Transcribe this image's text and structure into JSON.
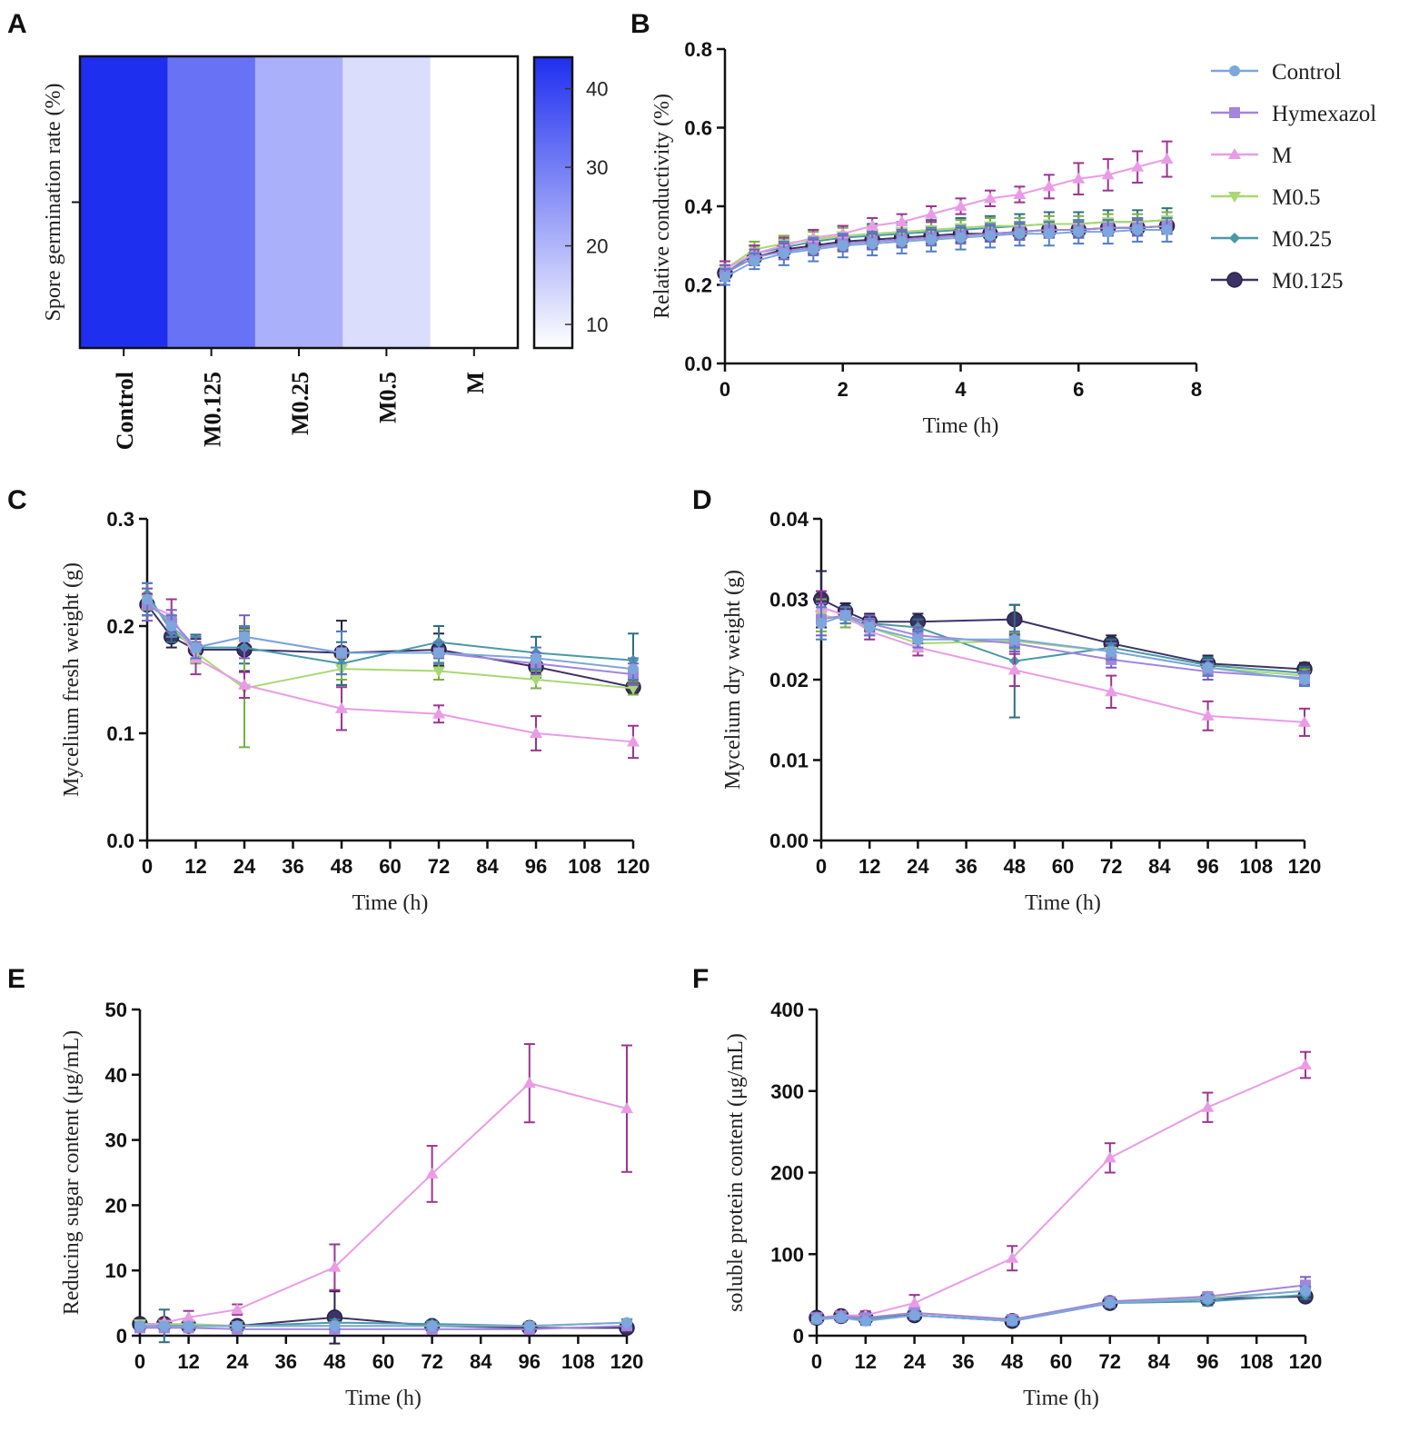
{
  "colors": {
    "Control": "#7ba7dc",
    "Hymexazol": "#a385dc",
    "M": "#ea9be6",
    "M0.5": "#a8d870",
    "M0.25": "#4a98a8",
    "M0.125": "#3c3266",
    "M_err": "#9b3490",
    "heat_max": "#1f2ff0"
  },
  "chart_data": [
    {
      "panel": "A",
      "type": "heatmap",
      "ylabel": "Spore germination rate (%)",
      "categories": [
        "Control",
        "M0.125",
        "M0.25",
        "M0.5",
        "M"
      ],
      "values": [
        44,
        32,
        21,
        13,
        7
      ],
      "colorbar": {
        "min": 7,
        "max": 44,
        "ticks": [
          10,
          20,
          30,
          40
        ]
      }
    },
    {
      "panel": "B",
      "type": "line",
      "xlabel": "Time (h)",
      "ylabel": "Relative conductivity (%)",
      "xlim": [
        0,
        8
      ],
      "ylim": [
        0,
        0.8
      ],
      "xticks": [
        0,
        2,
        4,
        6,
        8
      ],
      "yticks": [
        0.0,
        0.2,
        0.4,
        0.6,
        0.8
      ],
      "ytick_labels": [
        "0.0",
        "0.2",
        "0.4",
        "0.6",
        "0.8"
      ],
      "legend": [
        "Control",
        "Hymexazol",
        "M",
        "M0.5",
        "M0.25",
        "M0.125"
      ],
      "x": [
        0,
        0.5,
        1,
        1.5,
        2,
        2.5,
        3,
        3.5,
        4,
        4.5,
        5,
        5.5,
        6,
        6.5,
        7,
        7.5
      ],
      "series": [
        {
          "name": "Control",
          "values": [
            0.22,
            0.26,
            0.28,
            0.29,
            0.3,
            0.305,
            0.31,
            0.315,
            0.32,
            0.325,
            0.33,
            0.33,
            0.335,
            0.335,
            0.34,
            0.34
          ],
          "err": [
            0.02,
            0.02,
            0.03,
            0.03,
            0.03,
            0.03,
            0.03,
            0.03,
            0.03,
            0.03,
            0.03,
            0.03,
            0.03,
            0.03,
            0.03,
            0.03
          ]
        },
        {
          "name": "Hymexazol",
          "values": [
            0.23,
            0.27,
            0.285,
            0.295,
            0.305,
            0.31,
            0.315,
            0.32,
            0.325,
            0.33,
            0.335,
            0.34,
            0.34,
            0.345,
            0.345,
            0.35
          ],
          "err": [
            0.02,
            0.02,
            0.02,
            0.02,
            0.02,
            0.02,
            0.02,
            0.02,
            0.02,
            0.02,
            0.02,
            0.02,
            0.02,
            0.02,
            0.02,
            0.02
          ]
        },
        {
          "name": "M",
          "values": [
            0.24,
            0.28,
            0.3,
            0.32,
            0.33,
            0.35,
            0.36,
            0.38,
            0.4,
            0.42,
            0.43,
            0.45,
            0.47,
            0.48,
            0.5,
            0.52
          ],
          "err": [
            0.02,
            0.02,
            0.02,
            0.02,
            0.02,
            0.02,
            0.02,
            0.02,
            0.02,
            0.02,
            0.02,
            0.03,
            0.04,
            0.04,
            0.04,
            0.045
          ]
        },
        {
          "name": "M0.5",
          "values": [
            0.24,
            0.29,
            0.305,
            0.315,
            0.325,
            0.33,
            0.335,
            0.34,
            0.345,
            0.35,
            0.35,
            0.355,
            0.355,
            0.36,
            0.36,
            0.365
          ],
          "err": [
            0.02,
            0.02,
            0.02,
            0.02,
            0.02,
            0.02,
            0.02,
            0.02,
            0.02,
            0.02,
            0.02,
            0.02,
            0.02,
            0.02,
            0.02,
            0.02
          ]
        },
        {
          "name": "M0.25",
          "values": [
            0.23,
            0.28,
            0.295,
            0.31,
            0.32,
            0.325,
            0.33,
            0.335,
            0.34,
            0.345,
            0.35,
            0.355,
            0.355,
            0.36,
            0.36,
            0.365
          ],
          "err": [
            0.02,
            0.02,
            0.02,
            0.03,
            0.03,
            0.03,
            0.03,
            0.03,
            0.03,
            0.03,
            0.03,
            0.03,
            0.03,
            0.03,
            0.03,
            0.03
          ]
        },
        {
          "name": "M0.125",
          "values": [
            0.23,
            0.27,
            0.29,
            0.3,
            0.31,
            0.315,
            0.32,
            0.325,
            0.33,
            0.33,
            0.335,
            0.34,
            0.34,
            0.345,
            0.345,
            0.35
          ],
          "err": [
            0.02,
            0.02,
            0.02,
            0.02,
            0.02,
            0.02,
            0.02,
            0.02,
            0.02,
            0.02,
            0.02,
            0.02,
            0.02,
            0.02,
            0.02,
            0.02
          ]
        }
      ]
    },
    {
      "panel": "C",
      "type": "line",
      "xlabel": "Time (h)",
      "ylabel": "Mycelium fresh weight (g)",
      "xlim": [
        0,
        120
      ],
      "ylim": [
        0,
        0.3
      ],
      "xticks": [
        0,
        12,
        24,
        36,
        48,
        60,
        72,
        84,
        96,
        108,
        120
      ],
      "yticks": [
        0.0,
        0.1,
        0.2,
        0.3
      ],
      "ytick_labels": [
        "0.0",
        "0.1",
        "0.2",
        "0.3"
      ],
      "x": [
        0,
        6,
        12,
        24,
        48,
        72,
        96,
        120
      ],
      "series": [
        {
          "name": "Control",
          "values": [
            0.225,
            0.2,
            0.18,
            0.19,
            0.175,
            0.175,
            0.17,
            0.16
          ],
          "err": [
            0.015,
            0.01,
            0.01,
            0.01,
            0.02,
            0.01,
            0.01,
            0.01
          ]
        },
        {
          "name": "Hymexazol",
          "values": [
            0.22,
            0.205,
            0.18,
            0.19,
            0.175,
            0.175,
            0.165,
            0.155
          ],
          "err": [
            0.015,
            0.01,
            0.01,
            0.02,
            0.02,
            0.01,
            0.01,
            0.01
          ]
        },
        {
          "name": "M",
          "values": [
            0.22,
            0.21,
            0.17,
            0.145,
            0.123,
            0.118,
            0.1,
            0.092
          ],
          "err": [
            0.01,
            0.015,
            0.015,
            0.012,
            0.02,
            0.008,
            0.016,
            0.015
          ]
        },
        {
          "name": "M0.5",
          "values": [
            0.225,
            0.2,
            0.175,
            0.142,
            0.16,
            0.158,
            0.15,
            0.142
          ],
          "err": [
            0.01,
            0.01,
            0.01,
            0.055,
            0.01,
            0.008,
            0.008,
            0.006
          ]
        },
        {
          "name": "M0.25",
          "values": [
            0.23,
            0.195,
            0.18,
            0.18,
            0.165,
            0.185,
            0.175,
            0.168
          ],
          "err": [
            0.01,
            0.01,
            0.012,
            0.015,
            0.02,
            0.015,
            0.015,
            0.025
          ]
        },
        {
          "name": "M0.125",
          "values": [
            0.22,
            0.19,
            0.178,
            0.178,
            0.175,
            0.178,
            0.162,
            0.143
          ],
          "err": [
            0.01,
            0.01,
            0.01,
            0.02,
            0.03,
            0.015,
            0.01,
            0.005
          ]
        }
      ]
    },
    {
      "panel": "D",
      "type": "line",
      "xlabel": "Time (h)",
      "ylabel": "Mycelium dry weight (g)",
      "xlim": [
        0,
        120
      ],
      "ylim": [
        0,
        0.04
      ],
      "xticks": [
        0,
        12,
        24,
        36,
        48,
        60,
        72,
        84,
        96,
        108,
        120
      ],
      "yticks": [
        0.0,
        0.01,
        0.02,
        0.03,
        0.04
      ],
      "ytick_labels": [
        "0.00",
        "0.01",
        "0.02",
        "0.03",
        "0.04"
      ],
      "x": [
        0,
        6,
        12,
        24,
        48,
        72,
        96,
        120
      ],
      "series": [
        {
          "name": "Control",
          "values": [
            0.027,
            0.028,
            0.0265,
            0.025,
            0.025,
            0.0235,
            0.0215,
            0.02
          ],
          "err": [
            0.002,
            0.001,
            0.001,
            0.001,
            0.001,
            0.001,
            0.001,
            0.0008
          ]
        },
        {
          "name": "Hymexazol",
          "values": [
            0.0275,
            0.028,
            0.027,
            0.0255,
            0.0245,
            0.0225,
            0.021,
            0.0202
          ],
          "err": [
            0.002,
            0.001,
            0.001,
            0.001,
            0.001,
            0.001,
            0.001,
            0.0008
          ]
        },
        {
          "name": "M",
          "values": [
            0.029,
            0.028,
            0.026,
            0.024,
            0.0212,
            0.0185,
            0.0155,
            0.0147
          ],
          "err": [
            0.002,
            0.001,
            0.001,
            0.001,
            0.002,
            0.002,
            0.0018,
            0.0017
          ]
        },
        {
          "name": "M0.5",
          "values": [
            0.028,
            0.0275,
            0.0265,
            0.0245,
            0.0248,
            0.0235,
            0.0215,
            0.0205
          ],
          "err": [
            0.002,
            0.001,
            0.001,
            0.001,
            0.001,
            0.001,
            0.001,
            0.0008
          ]
        },
        {
          "name": "M0.25",
          "values": [
            0.029,
            0.028,
            0.027,
            0.0265,
            0.0223,
            0.024,
            0.0218,
            0.0208
          ],
          "err": [
            0.002,
            0.001,
            0.001,
            0.001,
            0.007,
            0.001,
            0.001,
            0.0008
          ]
        },
        {
          "name": "M0.125",
          "values": [
            0.03,
            0.0285,
            0.0272,
            0.0272,
            0.0275,
            0.0245,
            0.022,
            0.0213
          ],
          "err": [
            0.0035,
            0.001,
            0.001,
            0.001,
            0.0018,
            0.001,
            0.001,
            0.0008
          ]
        }
      ]
    },
    {
      "panel": "E",
      "type": "line",
      "xlabel": "Time (h)",
      "ylabel": "Reducing sugar content (μg/mL)",
      "xlim": [
        0,
        120
      ],
      "ylim": [
        0,
        50
      ],
      "xticks": [
        0,
        12,
        24,
        36,
        48,
        60,
        72,
        84,
        96,
        108,
        120
      ],
      "yticks": [
        0,
        10,
        20,
        30,
        40,
        50
      ],
      "ytick_labels": [
        "0",
        "10",
        "20",
        "30",
        "40",
        "50"
      ],
      "x": [
        0,
        6,
        12,
        24,
        48,
        72,
        96,
        120
      ],
      "series": [
        {
          "name": "Control",
          "values": [
            1.5,
            1.5,
            1.5,
            1.5,
            1.5,
            1.5,
            1.5,
            2.0
          ],
          "err": [
            0.5,
            0.5,
            0.5,
            0.5,
            0.5,
            0.5,
            0.5,
            0.5
          ]
        },
        {
          "name": "Hymexazol",
          "values": [
            1.2,
            1.2,
            1.2,
            1.0,
            1.0,
            1.0,
            1.0,
            1.5
          ],
          "err": [
            0.5,
            0.5,
            0.5,
            0.5,
            0.5,
            0.5,
            0.5,
            0.5
          ]
        },
        {
          "name": "M",
          "values": [
            1.5,
            2.0,
            2.8,
            4.0,
            10.5,
            24.8,
            38.7,
            34.8
          ],
          "err": [
            0.5,
            0.5,
            1.0,
            0.8,
            3.5,
            4.3,
            6.0,
            9.7
          ]
        },
        {
          "name": "M0.5",
          "values": [
            1.8,
            1.8,
            1.8,
            1.5,
            1.5,
            1.5,
            1.5,
            2.0
          ],
          "err": [
            0.5,
            0.5,
            0.5,
            0.5,
            0.5,
            0.5,
            0.5,
            0.5
          ]
        },
        {
          "name": "M0.25",
          "values": [
            1.5,
            1.5,
            1.5,
            1.5,
            2.0,
            1.8,
            1.5,
            2.0
          ],
          "err": [
            0.5,
            2.5,
            0.5,
            0.5,
            0.5,
            0.5,
            0.5,
            0.5
          ]
        },
        {
          "name": "M0.125",
          "values": [
            1.8,
            1.8,
            1.5,
            1.5,
            2.8,
            1.5,
            1.2,
            1.2
          ],
          "err": [
            0.5,
            0.5,
            0.5,
            0.5,
            4.0,
            0.5,
            0.5,
            0.5
          ]
        }
      ]
    },
    {
      "panel": "F",
      "type": "line",
      "xlabel": "Time (h)",
      "ylabel": "soluble protein content (μg/mL)",
      "xlim": [
        0,
        120
      ],
      "ylim": [
        0,
        400
      ],
      "xticks": [
        0,
        12,
        24,
        36,
        48,
        60,
        72,
        84,
        96,
        108,
        120
      ],
      "yticks": [
        0,
        100,
        200,
        300,
        400
      ],
      "ytick_labels": [
        "0",
        "100",
        "200",
        "300",
        "400"
      ],
      "x": [
        0,
        6,
        12,
        24,
        48,
        72,
        96,
        120
      ],
      "series": [
        {
          "name": "Control",
          "values": [
            20,
            22,
            18,
            25,
            18,
            40,
            45,
            55
          ],
          "err": [
            5,
            5,
            5,
            5,
            5,
            5,
            5,
            5
          ]
        },
        {
          "name": "Hymexazol",
          "values": [
            22,
            24,
            22,
            28,
            20,
            42,
            48,
            62
          ],
          "err": [
            5,
            5,
            5,
            5,
            5,
            5,
            5,
            10
          ]
        },
        {
          "name": "M",
          "values": [
            22,
            25,
            25,
            40,
            95,
            218,
            280,
            332
          ],
          "err": [
            5,
            5,
            5,
            10,
            15,
            18,
            18,
            16
          ]
        },
        {
          "name": "M0.5",
          "values": [
            22,
            24,
            22,
            28,
            20,
            40,
            46,
            55
          ],
          "err": [
            5,
            5,
            5,
            5,
            5,
            5,
            5,
            5
          ]
        },
        {
          "name": "M0.25",
          "values": [
            20,
            22,
            20,
            25,
            18,
            40,
            42,
            50
          ],
          "err": [
            5,
            5,
            5,
            5,
            5,
            5,
            5,
            5
          ]
        },
        {
          "name": "M0.125",
          "values": [
            22,
            24,
            22,
            25,
            18,
            40,
            45,
            48
          ],
          "err": [
            5,
            5,
            5,
            5,
            5,
            5,
            5,
            5
          ]
        }
      ]
    }
  ]
}
